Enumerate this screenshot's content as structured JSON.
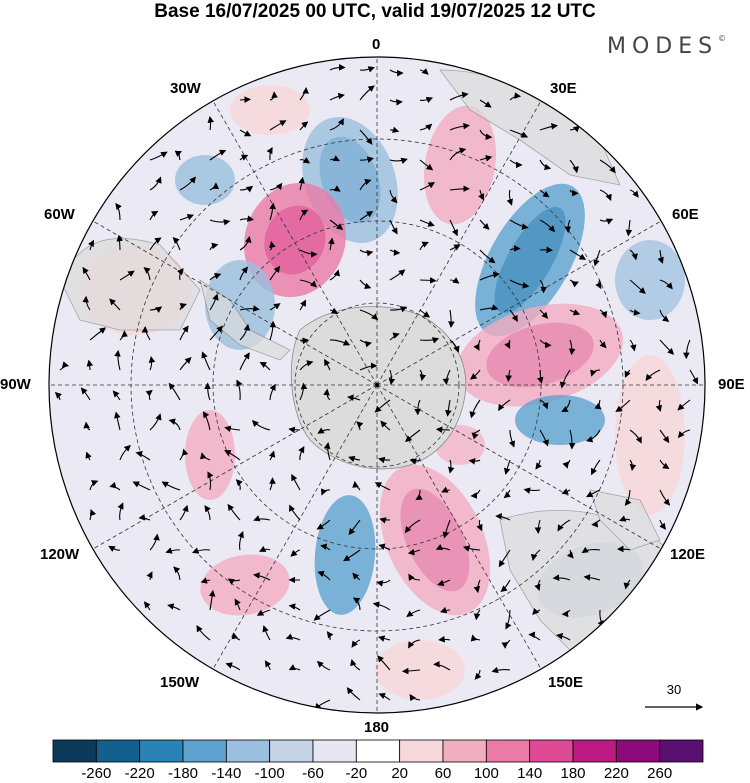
{
  "header": {
    "title": "Base 16/07/2025 00 UTC, valid 19/07/2025 12 UTC",
    "brand": "MODES",
    "brand_mark": "©"
  },
  "map": {
    "projection": "south polar stereographic",
    "longitude_labels": {
      "top": "0",
      "top_right": "30E",
      "right_upper": "60E",
      "right": "90E",
      "right_lower": "120E",
      "bottom_right": "150E",
      "bottom": "180",
      "bottom_left": "150W",
      "left_lower": "120W",
      "left": "90W",
      "left_upper": "60W",
      "top_left": "30W"
    },
    "vector_reference": {
      "value": "30"
    }
  },
  "colorbar": {
    "ticks": [
      "-260",
      "-220",
      "-180",
      "-140",
      "-100",
      "-60",
      "-20",
      "20",
      "60",
      "100",
      "140",
      "180",
      "220",
      "260"
    ],
    "colors": [
      "#0b3a5a",
      "#13608f",
      "#2a83b8",
      "#5ea3cf",
      "#9bbfdf",
      "#c5d3e6",
      "#e7e6f2",
      "#ffffff",
      "#f7d9dc",
      "#f3adc0",
      "#eb7ba6",
      "#df4a95",
      "#be1a83",
      "#8c0a7a",
      "#5a0f72"
    ]
  }
}
